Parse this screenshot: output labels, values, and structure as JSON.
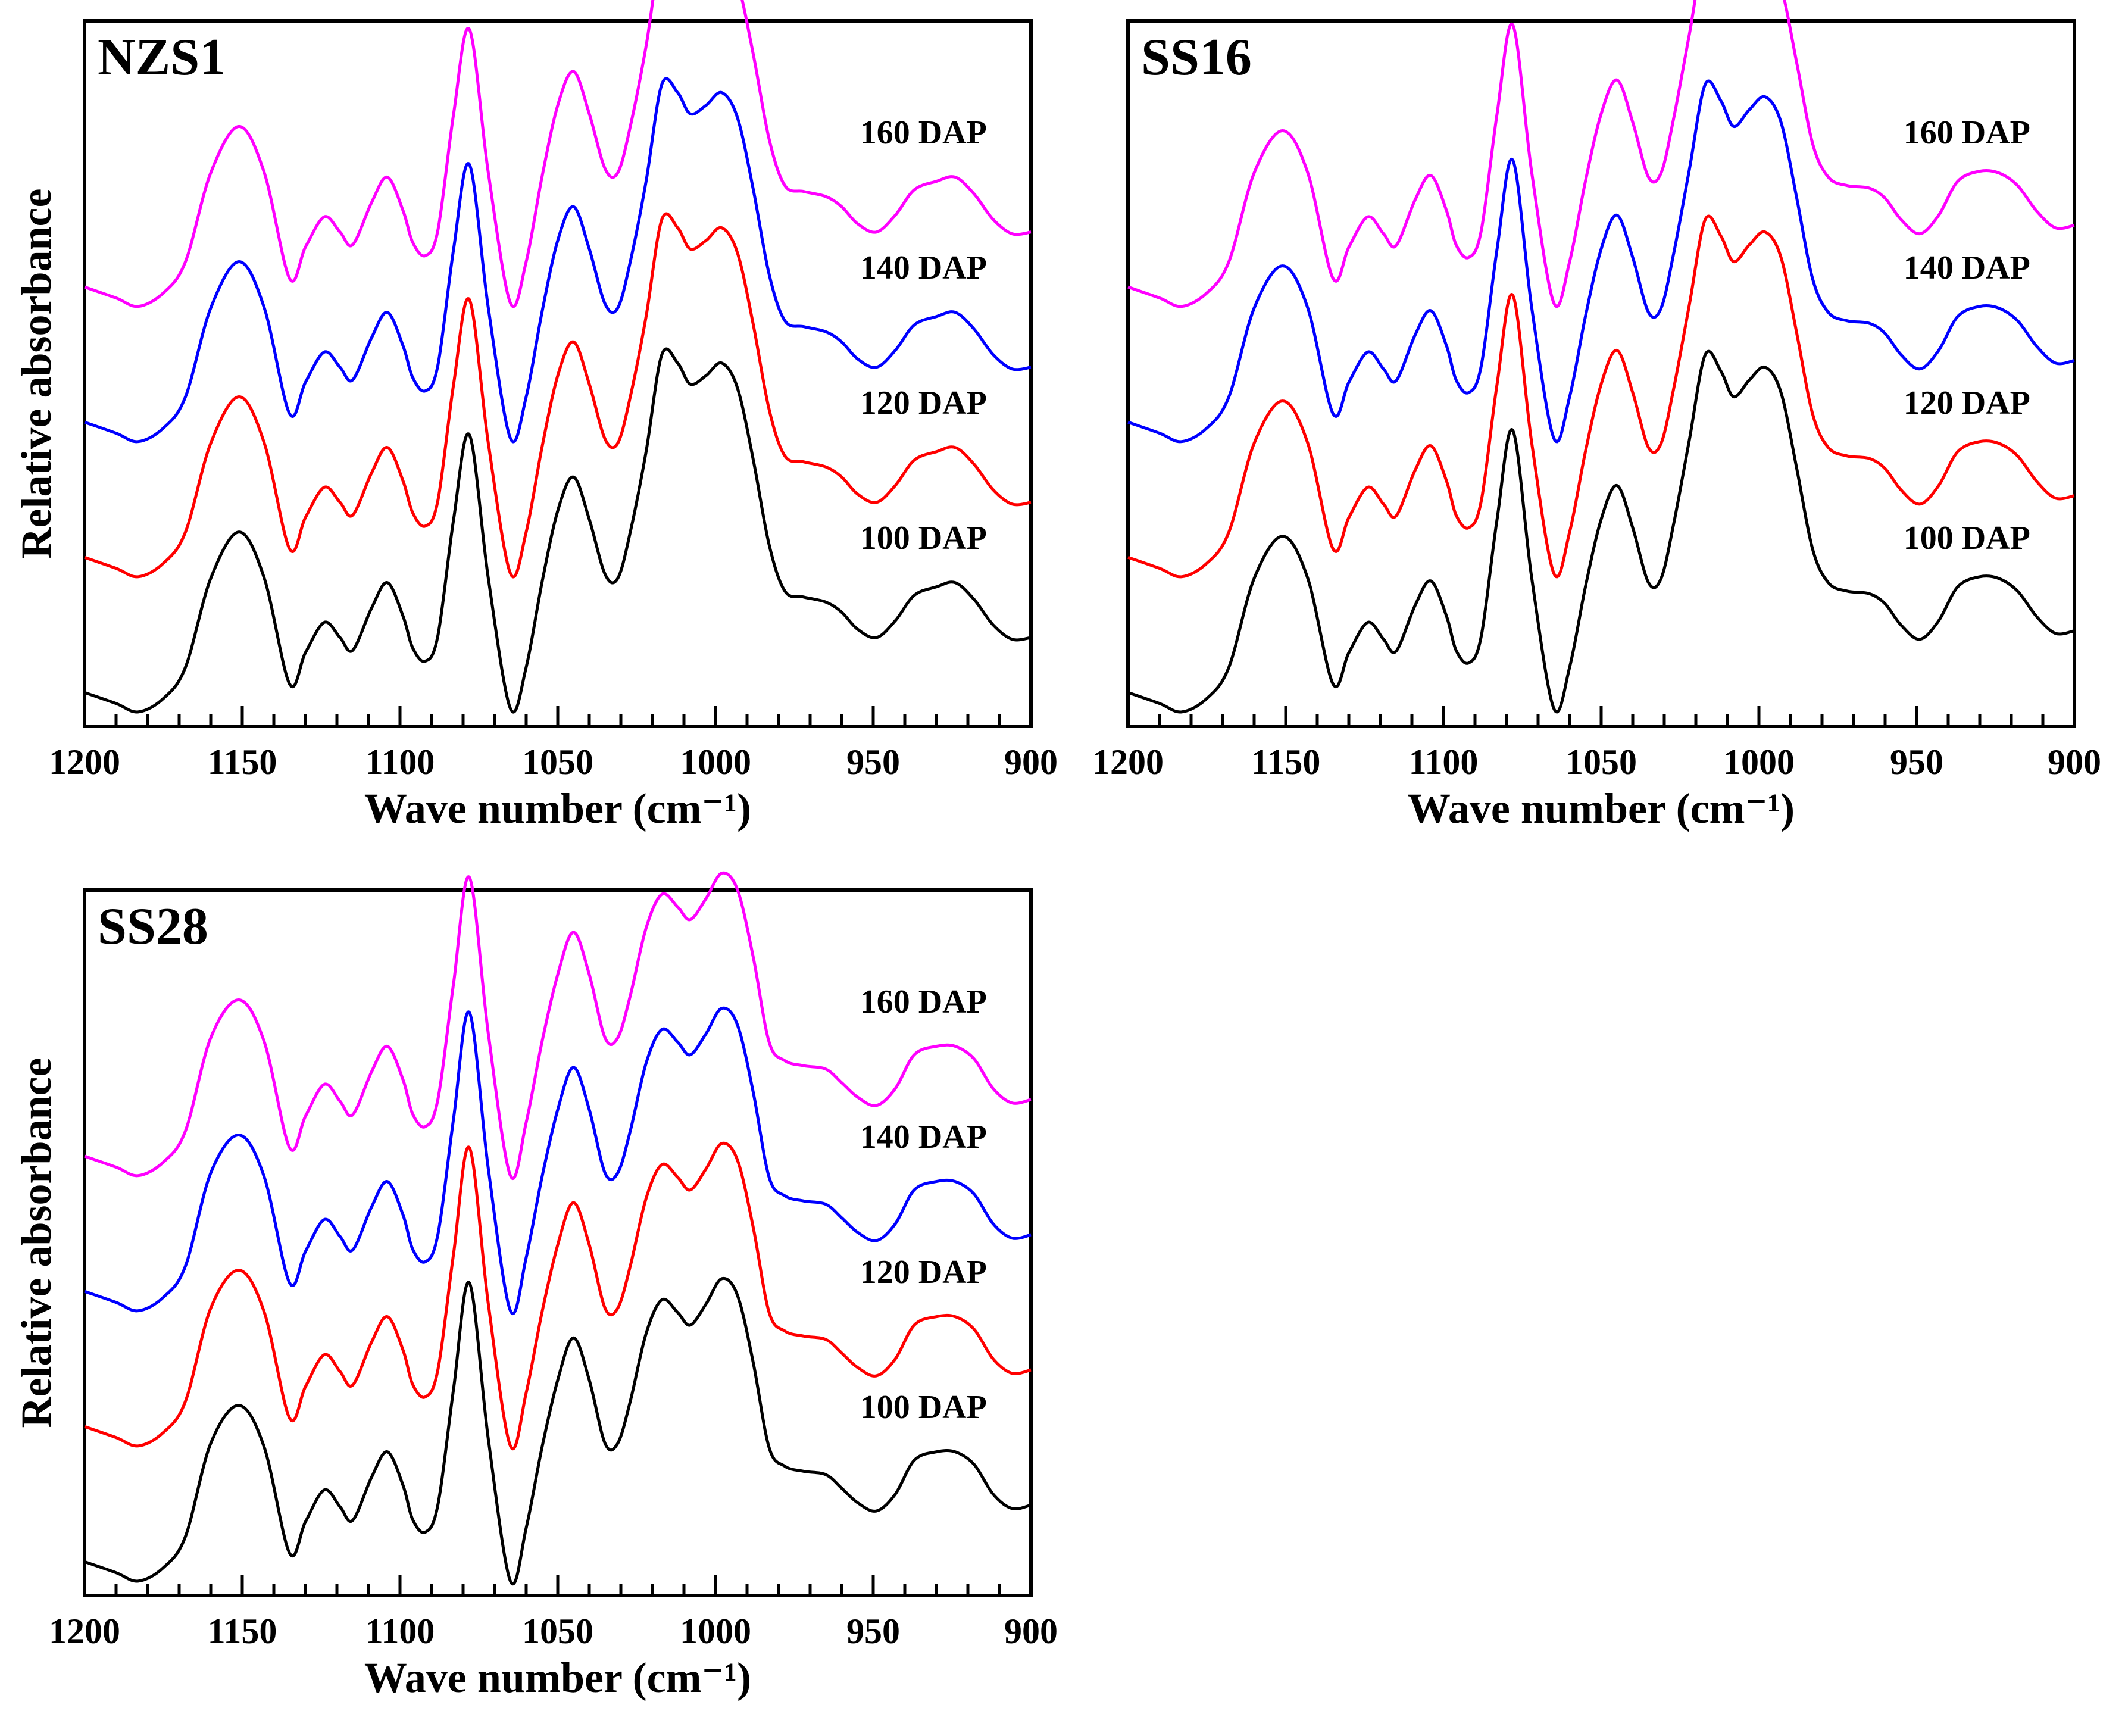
{
  "chart_data": [
    {
      "type": "line",
      "title": "NZS1",
      "xlabel": "Wave number (cm⁻¹)",
      "ylabel": "Relative absorbance",
      "xlim": [
        1200,
        900
      ],
      "ylim": [
        -0.15,
        8.2
      ],
      "xticks": [
        "1200",
        "1150",
        "1100",
        "1050",
        "1000",
        "950",
        "900"
      ],
      "series": [
        {
          "name": "100 DAP",
          "color": "#000000",
          "offset": 0
        },
        {
          "name": "120 DAP",
          "color": "#ff0000",
          "offset": 1
        },
        {
          "name": "140 DAP",
          "color": "#0000ff",
          "offset": 2
        },
        {
          "name": "160 DAP",
          "color": "#ff00ff",
          "offset": 3
        }
      ],
      "x": [
        1200,
        1190,
        1183,
        1175,
        1168,
        1160,
        1151,
        1143,
        1135,
        1130,
        1124,
        1119,
        1115,
        1109,
        1104,
        1099,
        1096,
        1092,
        1088,
        1083,
        1078,
        1072,
        1065,
        1060,
        1055,
        1050,
        1045,
        1040,
        1035,
        1031,
        1027,
        1022,
        1017,
        1012,
        1008,
        1003,
        998,
        993,
        988,
        983,
        978,
        972,
        965,
        960,
        955,
        949,
        943,
        937,
        930,
        924,
        918,
        912,
        906,
        900
      ],
      "values": [
        0.25,
        0.12,
        0.02,
        0.18,
        0.55,
        1.6,
        2.15,
        1.6,
        0.35,
        0.72,
        1.08,
        0.9,
        0.75,
        1.25,
        1.55,
        1.15,
        0.78,
        0.62,
        0.92,
        2.3,
        3.3,
        1.6,
        0.06,
        0.55,
        1.55,
        2.4,
        2.8,
        2.3,
        1.65,
        1.6,
        2.15,
        3.1,
        4.25,
        4.15,
        3.9,
        4.0,
        4.15,
        3.85,
        3.0,
        2.0,
        1.45,
        1.38,
        1.32,
        1.2,
        1.0,
        0.9,
        1.1,
        1.4,
        1.5,
        1.55,
        1.35,
        1.05,
        0.88,
        0.9
      ]
    },
    {
      "type": "line",
      "title": "SS16",
      "xlabel": "Wave number (cm⁻¹)",
      "ylabel": "Relative absorbance",
      "xlim": [
        1200,
        900
      ],
      "ylim": [
        -0.15,
        8.2
      ],
      "xticks": [
        "1200",
        "1150",
        "1100",
        "1050",
        "1000",
        "950",
        "900"
      ],
      "series": [
        {
          "name": "100 DAP",
          "color": "#000000",
          "offset": 0
        },
        {
          "name": "120 DAP",
          "color": "#ff0000",
          "offset": 1
        },
        {
          "name": "140 DAP",
          "color": "#0000ff",
          "offset": 2
        },
        {
          "name": "160 DAP",
          "color": "#ff00ff",
          "offset": 3
        }
      ],
      "x": [
        1200,
        1190,
        1183,
        1175,
        1168,
        1160,
        1151,
        1143,
        1135,
        1130,
        1124,
        1119,
        1115,
        1109,
        1104,
        1099,
        1096,
        1092,
        1088,
        1083,
        1078,
        1072,
        1065,
        1060,
        1055,
        1050,
        1045,
        1040,
        1035,
        1031,
        1027,
        1022,
        1017,
        1012,
        1008,
        1003,
        998,
        993,
        988,
        983,
        978,
        972,
        965,
        960,
        955,
        949,
        943,
        937,
        930,
        924,
        918,
        912,
        906,
        900
      ],
      "values": [
        0.25,
        0.12,
        0.02,
        0.18,
        0.55,
        1.6,
        2.1,
        1.6,
        0.35,
        0.72,
        1.08,
        0.88,
        0.74,
        1.28,
        1.57,
        1.15,
        0.75,
        0.6,
        0.92,
        2.3,
        3.35,
        1.6,
        0.06,
        0.55,
        1.5,
        2.3,
        2.7,
        2.2,
        1.55,
        1.6,
        2.25,
        3.25,
        4.25,
        4.05,
        3.75,
        3.95,
        4.1,
        3.8,
        2.9,
        1.95,
        1.55,
        1.45,
        1.42,
        1.3,
        1.05,
        0.88,
        1.1,
        1.5,
        1.62,
        1.6,
        1.45,
        1.15,
        0.95,
        0.98
      ]
    },
    {
      "type": "line",
      "title": "SS28",
      "xlabel": "Wave number (cm⁻¹)",
      "ylabel": "Relative absorbance",
      "xlim": [
        1200,
        900
      ],
      "ylim": [
        -0.15,
        8.2
      ],
      "xticks": [
        "1200",
        "1150",
        "1100",
        "1050",
        "1000",
        "950",
        "900"
      ],
      "series": [
        {
          "name": "100 DAP",
          "color": "#000000",
          "offset": 0
        },
        {
          "name": "120 DAP",
          "color": "#ff0000",
          "offset": 1
        },
        {
          "name": "140 DAP",
          "color": "#0000ff",
          "offset": 2
        },
        {
          "name": "160 DAP",
          "color": "#ff00ff",
          "offset": 3
        }
      ],
      "x": [
        1200,
        1190,
        1183,
        1175,
        1168,
        1160,
        1151,
        1143,
        1135,
        1130,
        1124,
        1119,
        1115,
        1109,
        1104,
        1099,
        1096,
        1092,
        1088,
        1083,
        1078,
        1072,
        1065,
        1060,
        1055,
        1050,
        1045,
        1040,
        1035,
        1031,
        1027,
        1022,
        1017,
        1012,
        1008,
        1003,
        998,
        993,
        988,
        983,
        978,
        972,
        965,
        960,
        955,
        949,
        943,
        937,
        930,
        924,
        918,
        912,
        906,
        900
      ],
      "values": [
        0.25,
        0.12,
        0.02,
        0.18,
        0.55,
        1.65,
        2.1,
        1.6,
        0.35,
        0.72,
        1.1,
        0.9,
        0.74,
        1.25,
        1.55,
        1.15,
        0.75,
        0.6,
        0.92,
        2.3,
        3.55,
        1.7,
        0.02,
        0.65,
        1.6,
        2.4,
        2.9,
        2.4,
        1.65,
        1.65,
        2.15,
        2.95,
        3.35,
        3.2,
        3.05,
        3.3,
        3.6,
        3.4,
        2.6,
        1.6,
        1.38,
        1.32,
        1.28,
        1.12,
        0.95,
        0.85,
        1.05,
        1.45,
        1.55,
        1.55,
        1.4,
        1.05,
        0.88,
        0.92
      ]
    }
  ]
}
